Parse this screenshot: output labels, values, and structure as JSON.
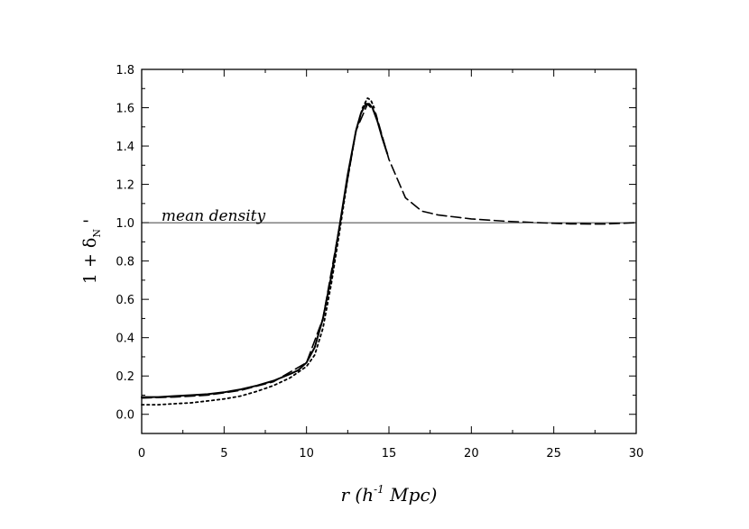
{
  "chart_data": {
    "type": "line",
    "xlabel_parts": {
      "main": "r (h",
      "sup": "-1",
      "rest": " Mpc)"
    },
    "ylabel_parts": {
      "main": "1 + δ",
      "sub": "N",
      "prime": "'"
    },
    "xlim": [
      0,
      30
    ],
    "ylim": [
      -0.1,
      1.8
    ],
    "xticks": [
      0,
      5,
      10,
      15,
      20,
      25,
      30
    ],
    "xtick_labels": [
      "0",
      "5",
      "10",
      "15",
      "20",
      "25",
      "30"
    ],
    "yticks": [
      0.0,
      0.2,
      0.4,
      0.6,
      0.8,
      1.0,
      1.2,
      1.4,
      1.6,
      1.8
    ],
    "ytick_labels": [
      "0.0",
      "0.2",
      "0.4",
      "0.6",
      "0.8",
      "1.0",
      "1.2",
      "1.4",
      "1.6",
      "1.8"
    ],
    "annotation": {
      "text": "mean density",
      "x": 1.2,
      "y": 1.01
    },
    "reference_line": {
      "y": 1.0,
      "style": "thin solid"
    },
    "grid": false,
    "series": [
      {
        "style": "solid",
        "x": [
          0,
          1,
          2,
          3,
          4,
          5,
          6,
          7,
          8,
          9,
          9.5,
          10,
          10.5,
          11,
          11.5,
          12,
          12.5,
          13,
          13.3,
          13.6,
          13.8,
          14.0,
          14.3,
          14.6,
          14.9
        ],
        "y": [
          0.09,
          0.09,
          0.095,
          0.1,
          0.105,
          0.115,
          0.13,
          0.15,
          0.175,
          0.21,
          0.23,
          0.27,
          0.35,
          0.5,
          0.72,
          0.98,
          1.25,
          1.48,
          1.57,
          1.62,
          1.62,
          1.6,
          1.53,
          1.44,
          1.36
        ]
      },
      {
        "style": "dashed",
        "x": [
          0,
          2,
          4,
          6,
          8,
          10,
          11,
          12,
          13,
          13.7,
          14.2,
          15,
          16,
          17,
          18,
          20,
          22,
          24,
          26,
          28,
          30
        ],
        "y": [
          0.085,
          0.09,
          0.1,
          0.125,
          0.17,
          0.27,
          0.5,
          0.98,
          1.48,
          1.62,
          1.57,
          1.33,
          1.13,
          1.06,
          1.04,
          1.02,
          1.008,
          1.0,
          0.994,
          0.993,
          1.0
        ]
      },
      {
        "style": "dotted",
        "x": [
          0,
          1,
          2,
          3,
          4,
          5,
          6,
          7,
          8,
          9,
          10,
          10.5,
          11,
          11.5,
          12,
          12.5,
          13,
          13.4,
          13.7,
          13.9,
          14.1
        ],
        "y": [
          0.05,
          0.05,
          0.055,
          0.06,
          0.07,
          0.08,
          0.095,
          0.12,
          0.15,
          0.19,
          0.25,
          0.31,
          0.45,
          0.68,
          0.95,
          1.23,
          1.48,
          1.6,
          1.65,
          1.64,
          1.6
        ]
      }
    ]
  }
}
